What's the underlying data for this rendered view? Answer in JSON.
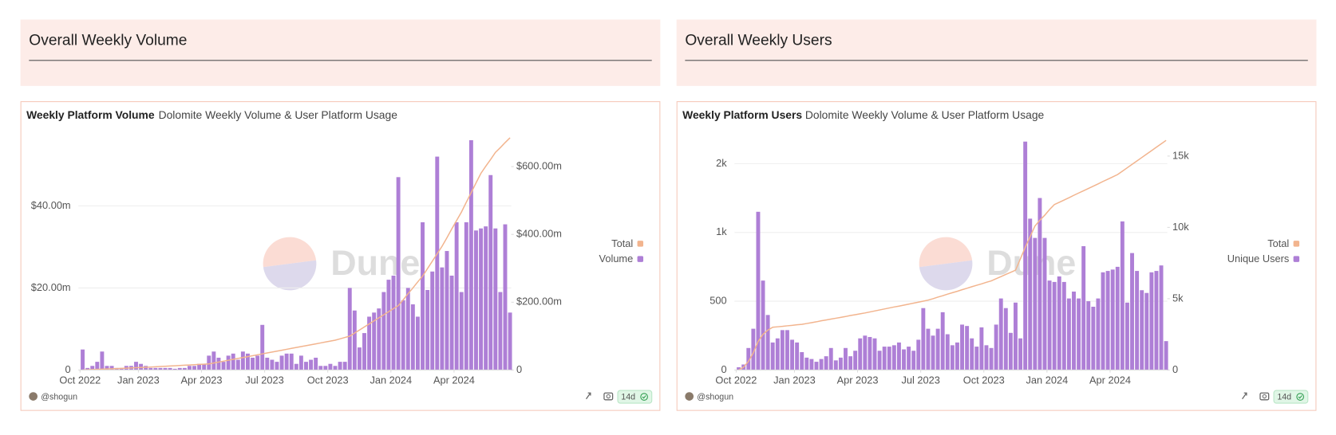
{
  "panels": [
    {
      "title": "Overall Weekly Volume"
    },
    {
      "title": "Overall Weekly Users"
    }
  ],
  "chart_data": [
    {
      "type": "bar",
      "title": "Weekly Platform Volume",
      "subtitle": "Dolomite Weekly Volume & User Platform Usage",
      "categories": [
        null,
        null,
        null,
        null,
        null,
        null,
        null,
        null,
        null,
        null,
        null,
        null,
        null,
        null,
        null,
        null,
        null,
        null,
        null,
        null,
        null,
        null,
        null,
        null,
        null,
        null,
        null,
        null,
        null,
        null,
        null,
        null,
        null,
        null,
        null,
        null,
        null,
        null,
        null,
        null,
        null,
        null,
        null,
        null,
        null,
        null,
        null,
        null,
        null,
        null,
        null,
        null,
        null,
        null,
        null,
        null,
        null,
        null,
        null,
        null,
        null,
        null,
        null,
        null,
        null,
        null,
        null,
        null,
        null,
        null,
        null,
        null,
        null,
        null,
        null,
        null,
        null,
        null,
        null,
        null,
        null,
        null,
        null,
        null,
        null,
        null,
        null,
        null,
        null
      ],
      "xticks": [
        {
          "value": 0,
          "label": "Oct 2022"
        },
        {
          "value": 12,
          "label": "Jan 2023"
        },
        {
          "value": 25,
          "label": "Apr 2023"
        },
        {
          "value": 38,
          "label": "Jul 2023"
        },
        {
          "value": 51,
          "label": "Oct 2023"
        },
        {
          "value": 64,
          "label": "Jan 2024"
        },
        {
          "value": 77,
          "label": "Apr 2024"
        }
      ],
      "series": [
        {
          "name": "Total",
          "type": "line",
          "axis": "y2",
          "color": "#f2b48e",
          "values": [
            0,
            0.6,
            1.2,
            1.8,
            2.5,
            3.1,
            3.7,
            4.3,
            4.9,
            5.5,
            6.2,
            6.8,
            7.4,
            8,
            8.8,
            9.5,
            10.3,
            11.1,
            11.8,
            12.6,
            13.4,
            14.2,
            14.9,
            15.7,
            16.5,
            17.2,
            18,
            20.7,
            23.4,
            26.1,
            28.8,
            31.5,
            34.2,
            36.8,
            39.5,
            42.2,
            44.9,
            47.6,
            50.3,
            53,
            55.7,
            58.4,
            61.1,
            63.8,
            66.5,
            69.2,
            71.8,
            74.5,
            77.2,
            79.9,
            82.6,
            85.3,
            88,
            92,
            96,
            100,
            109,
            118,
            127,
            136,
            145,
            154,
            163,
            172,
            181,
            190,
            207,
            225,
            242,
            260,
            277,
            299,
            321,
            343,
            365,
            390,
            416,
            441,
            466,
            495,
            523,
            552,
            580,
            601,
            621,
            642,
            656,
            671,
            685
          ]
        },
        {
          "name": "Volume",
          "color": "#ae7fd6",
          "values": [
            5,
            0.5,
            1,
            2,
            4.5,
            1,
            1,
            0.5,
            0.5,
            1,
            1,
            2,
            1.5,
            1,
            0.5,
            0.5,
            0.5,
            0.5,
            0.5,
            0.3,
            0.5,
            0.5,
            1,
            1,
            1.5,
            1.5,
            3.5,
            4.5,
            3,
            2,
            3.5,
            4,
            2.5,
            4.5,
            4,
            3,
            3.5,
            11,
            3,
            2.5,
            2,
            3.5,
            4,
            4,
            1.5,
            3.5,
            2,
            2.5,
            3,
            1,
            1,
            1.5,
            1,
            2,
            2,
            20,
            14.5,
            5.5,
            9,
            13,
            14,
            15,
            19,
            22,
            23,
            47,
            17,
            20,
            16,
            13,
            36,
            19.5,
            24,
            52,
            25,
            29,
            23,
            36,
            19,
            36,
            56,
            34,
            34.5,
            35,
            47.5,
            34.5,
            19,
            35.5,
            14
          ]
        }
      ],
      "ylim": [
        0,
        57
      ],
      "yticks": [
        0,
        {
          "value": 20,
          "label": "$20.00m"
        },
        {
          "value": 40,
          "label": "$40.00m"
        }
      ],
      "y2lim": [
        0,
        690
      ],
      "y2ticks": [
        0,
        {
          "value": 200,
          "label": "$200.00m"
        },
        {
          "value": 400,
          "label": "$400.00m"
        },
        {
          "value": 600,
          "label": "$600.00m"
        }
      ],
      "grid": true,
      "legend": "right",
      "author": "@shogun",
      "badge": "14d",
      "watermark": "Dune"
    },
    {
      "type": "bar",
      "title": "Weekly Platform Users",
      "subtitle": "Dolomite Weekly Volume & User Platform Usage",
      "categories": [
        null,
        null,
        null,
        null,
        null,
        null,
        null,
        null,
        null,
        null,
        null,
        null,
        null,
        null,
        null,
        null,
        null,
        null,
        null,
        null,
        null,
        null,
        null,
        null,
        null,
        null,
        null,
        null,
        null,
        null,
        null,
        null,
        null,
        null,
        null,
        null,
        null,
        null,
        null,
        null,
        null,
        null,
        null,
        null,
        null,
        null,
        null,
        null,
        null,
        null,
        null,
        null,
        null,
        null,
        null,
        null,
        null,
        null,
        null,
        null,
        null,
        null,
        null,
        null,
        null,
        null,
        null,
        null,
        null,
        null,
        null,
        null,
        null,
        null,
        null,
        null,
        null,
        null,
        null,
        null,
        null,
        null,
        null,
        null,
        null,
        null,
        null,
        null,
        null
      ],
      "xticks": [
        {
          "value": 0,
          "label": "Oct 2022"
        },
        {
          "value": 12,
          "label": "Jan 2023"
        },
        {
          "value": 25,
          "label": "Apr 2023"
        },
        {
          "value": 38,
          "label": "Jul 2023"
        },
        {
          "value": 51,
          "label": "Oct 2023"
        },
        {
          "value": 64,
          "label": "Jan 2024"
        },
        {
          "value": 77,
          "label": "Apr 2024"
        }
      ],
      "series": [
        {
          "name": "Total",
          "type": "line",
          "axis": "y2",
          "color": "#f2b48e",
          "values": [
            0,
            200,
            600,
            1200,
            2000,
            2500,
            2800,
            3000,
            3030,
            3060,
            3100,
            3130,
            3170,
            3200,
            3260,
            3320,
            3380,
            3450,
            3510,
            3570,
            3630,
            3690,
            3750,
            3820,
            3880,
            3940,
            4000,
            4070,
            4140,
            4210,
            4280,
            4350,
            4420,
            4480,
            4550,
            4620,
            4690,
            4760,
            4830,
            4900,
            5000,
            5110,
            5210,
            5320,
            5420,
            5520,
            5630,
            5730,
            5840,
            5940,
            6040,
            6150,
            6250,
            6400,
            6550,
            6700,
            6850,
            7000,
            7800,
            8600,
            9350,
            10100,
            10500,
            10850,
            11250,
            11600,
            11760,
            11920,
            12080,
            12250,
            12410,
            12570,
            12730,
            12890,
            13050,
            13220,
            13380,
            13540,
            13700,
            13940,
            14180,
            14420,
            14660,
            14900,
            15140,
            15380,
            15620,
            15860,
            16100
          ]
        },
        {
          "name": "Unique Users",
          "color": "#ae7fd6",
          "values": [
            20,
            40,
            160,
            300,
            1150,
            650,
            400,
            200,
            230,
            290,
            290,
            220,
            200,
            130,
            90,
            80,
            60,
            80,
            100,
            160,
            70,
            90,
            160,
            100,
            140,
            230,
            250,
            240,
            230,
            140,
            170,
            170,
            180,
            200,
            150,
            170,
            140,
            220,
            450,
            300,
            250,
            300,
            420,
            260,
            180,
            200,
            330,
            320,
            230,
            170,
            310,
            180,
            160,
            330,
            520,
            450,
            270,
            490,
            230,
            1660,
            1100,
            960,
            1250,
            960,
            650,
            640,
            680,
            640,
            520,
            570,
            520,
            900,
            500,
            460,
            520,
            710,
            720,
            730,
            750,
            1080,
            490,
            850,
            720,
            580,
            560,
            710,
            720,
            760,
            210
          ]
        }
      ],
      "ylim": [
        0,
        1700
      ],
      "yticks": [
        0,
        500,
        {
          "value": 1000,
          "label": "1k"
        },
        {
          "value": 1500,
          "label": "2k"
        }
      ],
      "y2lim": [
        0,
        16400
      ],
      "y2ticks": [
        0,
        {
          "value": 5000,
          "label": "5k"
        },
        {
          "value": 10000,
          "label": "10k"
        },
        {
          "value": 15000,
          "label": "15k"
        }
      ],
      "grid": true,
      "legend": "right",
      "author": "@shogun",
      "badge": "14d",
      "watermark": "Dune"
    }
  ]
}
